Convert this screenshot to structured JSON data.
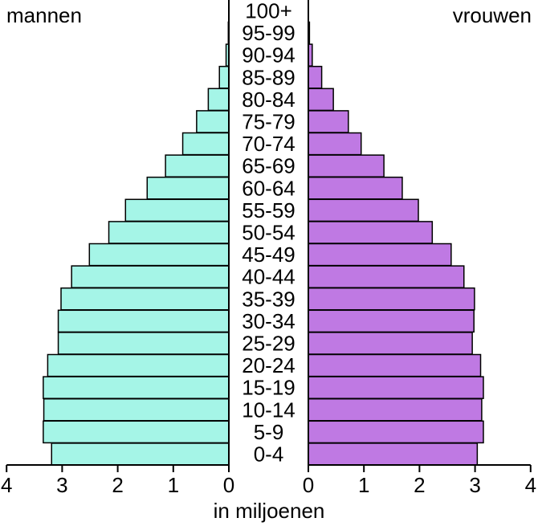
{
  "chart_data": {
    "type": "bar",
    "orientation": "horizontal-population-pyramid",
    "left_label": "mannen",
    "right_label": "vrouwen",
    "xlabel": "in miljoenen",
    "xlim": [
      0,
      4
    ],
    "x_ticks_left": [
      "4",
      "3",
      "2",
      "1",
      "0"
    ],
    "x_ticks_right": [
      "0",
      "1",
      "2",
      "3",
      "4"
    ],
    "categories": [
      "0-4",
      "5-9",
      "10-14",
      "15-19",
      "20-24",
      "25-29",
      "30-34",
      "35-39",
      "40-44",
      "45-49",
      "50-54",
      "55-59",
      "60-64",
      "65-69",
      "70-74",
      "75-79",
      "80-84",
      "85-89",
      "90-94",
      "95-99",
      "100+"
    ],
    "series": [
      {
        "name": "mannen",
        "color": "#a5f5e7",
        "values": [
          3.19,
          3.34,
          3.33,
          3.34,
          3.26,
          3.07,
          3.07,
          3.02,
          2.83,
          2.51,
          2.16,
          1.86,
          1.47,
          1.14,
          0.83,
          0.58,
          0.37,
          0.17,
          0.05,
          0.01,
          0.0
        ]
      },
      {
        "name": "vrouwen",
        "color": "#bf79e3",
        "values": [
          3.04,
          3.15,
          3.12,
          3.15,
          3.1,
          2.95,
          2.98,
          2.99,
          2.8,
          2.57,
          2.23,
          1.98,
          1.69,
          1.36,
          0.95,
          0.72,
          0.45,
          0.24,
          0.07,
          0.02,
          0.0
        ]
      }
    ]
  }
}
